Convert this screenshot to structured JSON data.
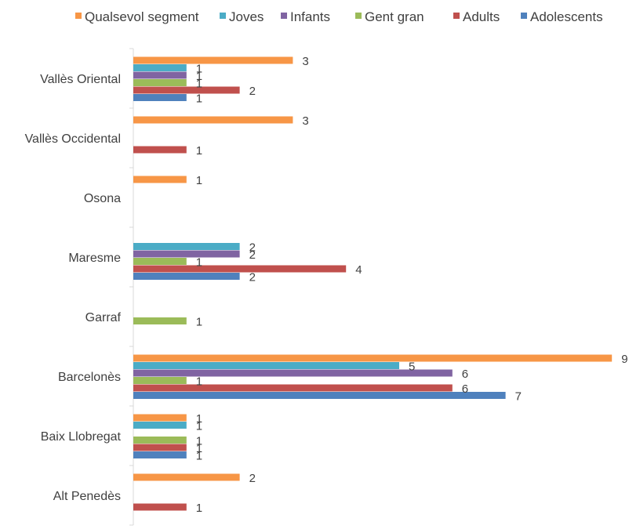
{
  "chart_data": {
    "type": "bar",
    "orientation": "horizontal",
    "title": "",
    "xlabel": "",
    "ylabel": "",
    "xlim": [
      0,
      9
    ],
    "grid": false,
    "legend_position": "top",
    "categories": [
      "Vallès Oriental",
      "Vallès Occidental",
      "Osona",
      "Maresme",
      "Garraf",
      "Barcelonès",
      "Baix Llobregat",
      "Alt Penedès"
    ],
    "series": [
      {
        "name": "Qualsevol segment",
        "color": "#f79646",
        "values": [
          3,
          3,
          1,
          null,
          null,
          9,
          1,
          2
        ]
      },
      {
        "name": "Joves",
        "color": "#4bacc6",
        "values": [
          1,
          null,
          null,
          2,
          null,
          5,
          1,
          null
        ]
      },
      {
        "name": "Infants",
        "color": "#8064a2",
        "values": [
          1,
          null,
          null,
          2,
          null,
          6,
          null,
          null
        ]
      },
      {
        "name": "Gent gran",
        "color": "#9bbb59",
        "values": [
          1,
          null,
          null,
          1,
          1,
          1,
          1,
          null
        ]
      },
      {
        "name": "Adults",
        "color": "#c0504d",
        "values": [
          2,
          1,
          null,
          4,
          null,
          6,
          1,
          1
        ]
      },
      {
        "name": "Adolescents",
        "color": "#4f81bd",
        "values": [
          1,
          null,
          null,
          2,
          null,
          7,
          1,
          null
        ]
      }
    ]
  }
}
